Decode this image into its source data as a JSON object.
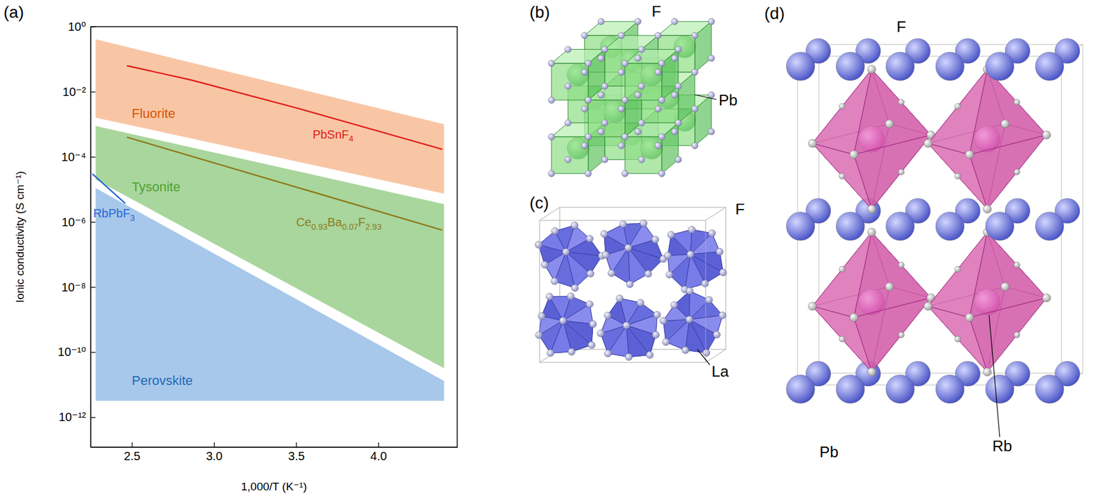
{
  "chart_data": {
    "type": "line",
    "panel": "(a)",
    "xlabel": "1,000/T (K⁻¹)",
    "ylabel": "Ionic conductivity (S cm⁻¹)",
    "log": "y",
    "grid": false,
    "xlim": [
      2.25,
      4.48
    ],
    "xticks": [
      2.5,
      {
        "value": 3,
        "label": "3.0"
      },
      3.5,
      {
        "value": 4,
        "label": "4.0"
      }
    ],
    "ylim": [
      1.2e-13,
      1
    ],
    "yticks": [
      {
        "value": 1,
        "label": "10⁰"
      },
      {
        "value": 0.01,
        "label": "10⁻²"
      },
      {
        "value": 0.0001,
        "label": "10⁻⁴"
      },
      {
        "value": 1e-06,
        "label": "10⁻⁶"
      },
      {
        "value": 1e-08,
        "label": "10⁻⁸"
      },
      {
        "value": 1e-10,
        "label": "10⁻¹⁰"
      },
      {
        "value": 1e-12,
        "label": "10⁻¹²"
      }
    ],
    "series": [
      {
        "name": "Fluorite",
        "type": "band",
        "color": "#f9c6a5",
        "x": [
          2.28,
          4.4
        ],
        "upper": [
          0.41,
          0.001
        ],
        "lower": [
          0.0016,
          7.4e-06
        ]
      },
      {
        "name": "Tysonite",
        "type": "band",
        "color": "#a9d69c",
        "x": [
          2.28,
          4.4
        ],
        "upper": [
          0.00089,
          3.5e-06
        ],
        "lower": [
          2e-05,
          3.2e-11
        ]
      },
      {
        "name": "Perovskite",
        "type": "band",
        "color": "#a7c8ea",
        "x": [
          2.28,
          4.4
        ],
        "upper": [
          1.1e-05,
          1.3e-11
        ],
        "lower": [
          3.2e-12,
          3.2e-12
        ]
      },
      {
        "name": "PbSnF4",
        "type": "line",
        "color": "#e0201c",
        "x": [
          2.47,
          2.86,
          3.5,
          4.39
        ],
        "values": [
          0.063,
          0.023,
          0.0032,
          0.00017
        ]
      },
      {
        "name": "Ce0.93Ba0.07F2.93",
        "type": "line",
        "color": "#8c7b1c",
        "x": [
          2.47,
          4.39
        ],
        "values": [
          0.0004,
          5.6e-07
        ]
      },
      {
        "name": "RbPbF3",
        "type": "line",
        "color": "#2a64d8",
        "x": [
          2.26,
          2.46
        ],
        "values": [
          3e-05,
          3.7e-06
        ]
      }
    ]
  },
  "structures": [
    {
      "panel": "(b)",
      "labels": [
        "F",
        "Pb"
      ]
    },
    {
      "panel": "(c)",
      "labels": [
        "F",
        "La"
      ]
    },
    {
      "panel": "(d)",
      "labels": [
        "F",
        "Pb",
        "Rb"
      ]
    }
  ]
}
